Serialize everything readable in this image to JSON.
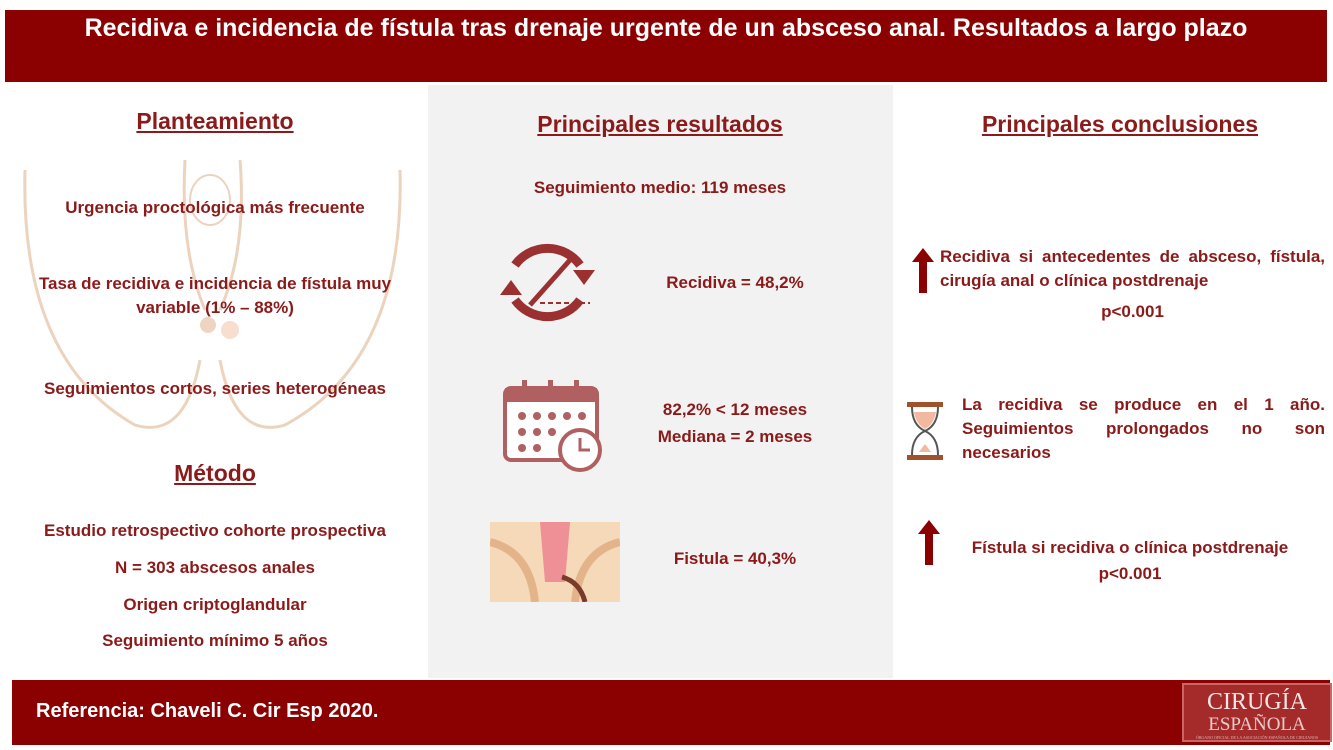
{
  "header": {
    "title": "Recidiva e incidencia de fístula tras drenaje urgente de un absceso anal. Resultados a largo plazo"
  },
  "planteamiento": {
    "title": "Planteamiento",
    "items": [
      "Urgencia proctológica más frecuente",
      "Tasa de recidiva e incidencia de fístula muy variable (1% – 88%)",
      "Seguimientos cortos, series heterogéneas"
    ]
  },
  "metodo": {
    "title": "Método",
    "items": [
      "Estudio retrospectivo cohorte prospectiva",
      "N = 303 abscesos anales",
      "Origen criptoglandular",
      "Seguimiento mínimo 5 años"
    ]
  },
  "resultados": {
    "title": "Principales resultados",
    "seguimiento": "Seguimiento medio: 119 meses",
    "recidiva": "Recidiva = 48,2%",
    "tiempo1": "82,2% < 12 meses",
    "tiempo2": "Mediana = 2 meses",
    "fistula": "Fistula = 40,3%"
  },
  "conclusiones": {
    "title": "Principales conclusiones",
    "c1": "Recidiva si antecedentes de absceso, fístula, cirugía anal o clínica postdrenaje",
    "c1p": "p<0.001",
    "c2": "La recidiva se produce en el 1  año. Seguimientos prolongados no son necesarios",
    "c3": "Fístula si recidiva o clínica postdrenaje",
    "c3p": "p<0.001"
  },
  "footer": {
    "reference": "Referencia: Chaveli C. Cir Esp 2020.",
    "logo_line1": "CIRUGÍA",
    "logo_line2": "ESPAÑOLA",
    "logo_line3": "ÓRGANO OFICIAL DE LA ASOCIACIÓN ESPAÑOLA DE CIRUJANOS"
  },
  "colors": {
    "brand": "#8b0000",
    "text": "#8b1a1a",
    "panel": "#f2f2f2"
  }
}
